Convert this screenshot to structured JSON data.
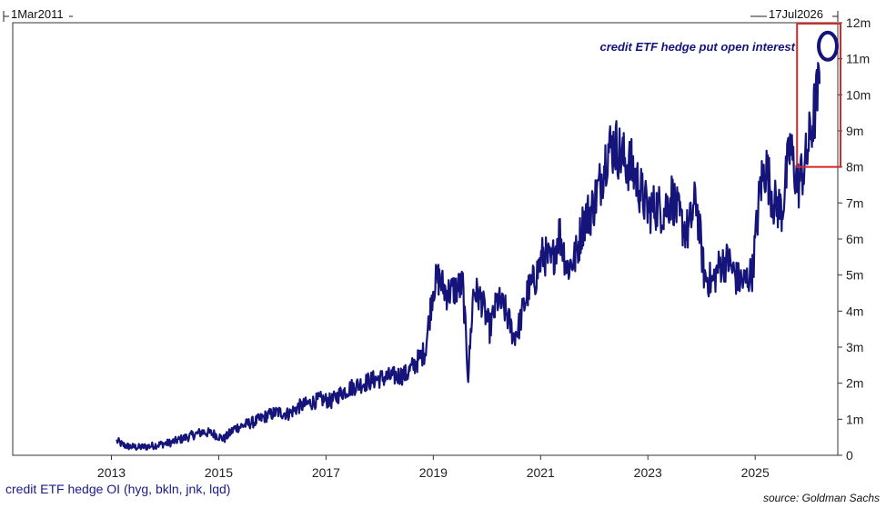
{
  "chart_data": {
    "type": "line",
    "title": "",
    "xlabel": "",
    "ylabel": "",
    "range_start": "1Mar2011",
    "range_end": "17Jul2026",
    "xlim": [
      2011.16,
      2026.54
    ],
    "ylim": [
      0,
      12
    ],
    "x_ticks": [
      2013,
      2015,
      2017,
      2019,
      2021,
      2023,
      2025
    ],
    "x_tick_labels": [
      "2013",
      "2015",
      "2017",
      "2019",
      "2021",
      "2023",
      "2025"
    ],
    "y_ticks": [
      0,
      1,
      2,
      3,
      4,
      5,
      6,
      7,
      8,
      9,
      10,
      11,
      12
    ],
    "y_tick_labels": [
      "0",
      "1m",
      "2m",
      "3m",
      "4m",
      "5m",
      "6m",
      "7m",
      "8m",
      "9m",
      "10m",
      "11m",
      "12m"
    ],
    "y_axis_side": "right",
    "grid": false,
    "legend": "bottom-left",
    "series": [
      {
        "name": "credit ETF hedge OI (hyg, bkln, jnk, lqd)",
        "color": "#14147a",
        "x": [
          2013.1,
          2013.2,
          2013.3,
          2013.5,
          2013.7,
          2013.9,
          2014.1,
          2014.3,
          2014.5,
          2014.7,
          2014.9,
          2015.1,
          2015.3,
          2015.5,
          2015.7,
          2015.9,
          2016.1,
          2016.3,
          2016.5,
          2016.7,
          2016.9,
          2017.1,
          2017.3,
          2017.5,
          2017.7,
          2017.9,
          2018.1,
          2018.3,
          2018.5,
          2018.7,
          2018.85,
          2019.0,
          2019.1,
          2019.25,
          2019.4,
          2019.55,
          2019.65,
          2019.75,
          2019.9,
          2020.05,
          2020.2,
          2020.35,
          2020.5,
          2020.6,
          2020.75,
          2020.9,
          2021.05,
          2021.2,
          2021.35,
          2021.5,
          2021.65,
          2021.8,
          2021.95,
          2022.1,
          2022.25,
          2022.4,
          2022.55,
          2022.7,
          2022.85,
          2023.0,
          2023.15,
          2023.3,
          2023.45,
          2023.6,
          2023.75,
          2023.9,
          2024.05,
          2024.2,
          2024.35,
          2024.5,
          2024.65,
          2024.8,
          2024.95,
          2025.1,
          2025.2,
          2025.35,
          2025.5,
          2025.65,
          2025.8,
          2025.95,
          2026.1,
          2026.2
        ],
        "values": [
          0.4,
          0.3,
          0.25,
          0.22,
          0.25,
          0.3,
          0.35,
          0.45,
          0.55,
          0.65,
          0.6,
          0.45,
          0.75,
          0.85,
          0.95,
          1.1,
          1.2,
          1.15,
          1.35,
          1.45,
          1.55,
          1.5,
          1.75,
          1.9,
          2.0,
          2.1,
          2.15,
          2.2,
          2.25,
          2.6,
          2.9,
          4.7,
          4.9,
          4.5,
          4.6,
          4.7,
          2.2,
          4.6,
          4.3,
          3.5,
          4.3,
          4.0,
          3.3,
          3.6,
          4.5,
          4.9,
          5.6,
          5.3,
          6.2,
          5.2,
          5.5,
          6.5,
          6.8,
          7.5,
          8.5,
          8.6,
          8.2,
          8.0,
          7.4,
          6.8,
          6.9,
          6.8,
          7.2,
          6.5,
          6.2,
          7.1,
          5.0,
          4.8,
          5.3,
          5.4,
          4.9,
          4.8,
          5.1,
          7.5,
          8.0,
          7.0,
          6.8,
          8.5,
          7.5,
          8.2,
          9.5,
          10.3
        ]
      }
    ],
    "annotations": [
      {
        "text": "credit ETF hedge put open interest",
        "near_x": 2026.15,
        "near_y": 11.35
      }
    ],
    "highlight_box": {
      "x": [
        2025.95,
        2026.15
      ],
      "y": [
        8.0,
        12.0
      ],
      "color": "#d42a2a"
    },
    "highlight_ellipse": {
      "center_x": 2026.15,
      "center_y": 11.35,
      "color": "#14147a"
    },
    "source": "source: Goldman Sachs"
  }
}
